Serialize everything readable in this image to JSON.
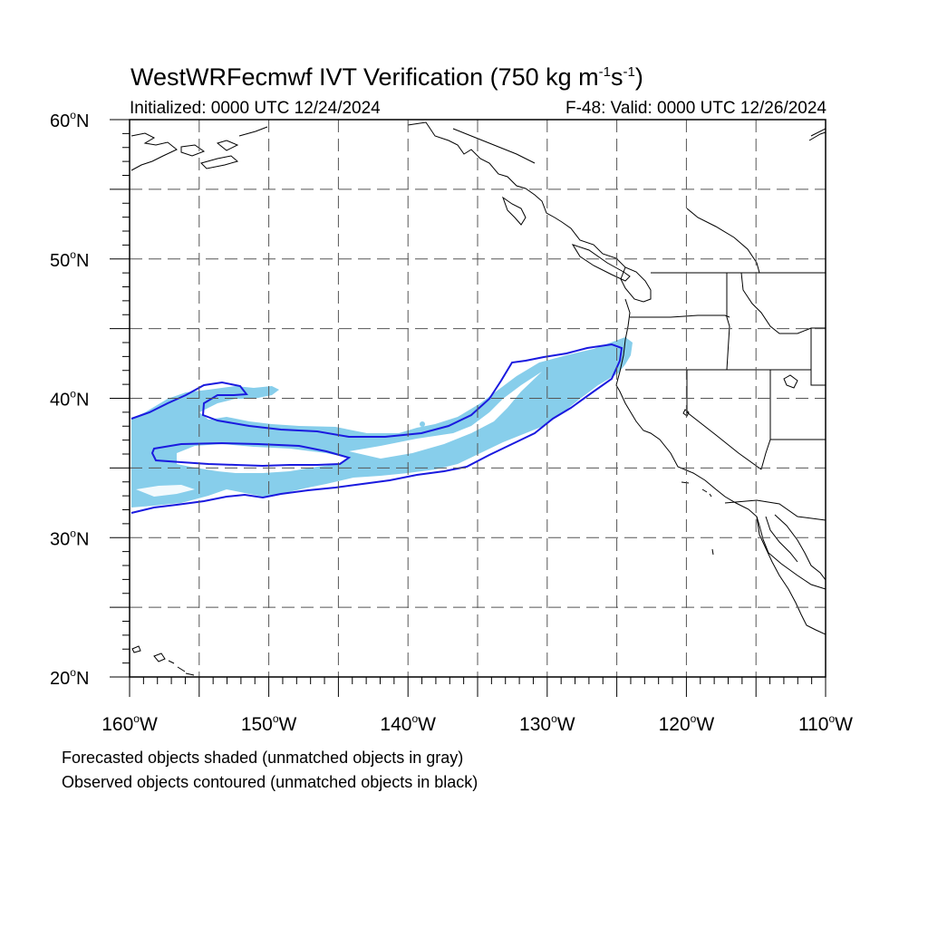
{
  "title": {
    "main": "WestWRFecmwf IVT Verification (750 kg m",
    "sup1": "-1",
    "mid": "s",
    "sup2": "-1",
    "end": ")"
  },
  "initialized": "Initialized: 0000 UTC 12/24/2024",
  "valid": "F-48: Valid: 0000 UTC 12/26/2024",
  "lat_labels": [
    {
      "value": 60,
      "text": "60",
      "hemi": "N"
    },
    {
      "value": 50,
      "text": "50",
      "hemi": "N"
    },
    {
      "value": 40,
      "text": "40",
      "hemi": "N"
    },
    {
      "value": 30,
      "text": "30",
      "hemi": "N"
    },
    {
      "value": 20,
      "text": "20",
      "hemi": "N"
    }
  ],
  "lon_labels": [
    {
      "value": -160,
      "text": "160",
      "hemi": "W"
    },
    {
      "value": -150,
      "text": "150",
      "hemi": "W"
    },
    {
      "value": -140,
      "text": "140",
      "hemi": "W"
    },
    {
      "value": -130,
      "text": "130",
      "hemi": "W"
    },
    {
      "value": -120,
      "text": "120",
      "hemi": "W"
    },
    {
      "value": -110,
      "text": "110",
      "hemi": "W"
    }
  ],
  "domain": {
    "lon_min": -160,
    "lon_max": -110,
    "lat_min": 20,
    "lat_max": 60
  },
  "colors": {
    "forecast_fill": "#87ceeb",
    "observed_contour": "#1a1adf",
    "coast": "#000000",
    "grid": "#000000"
  },
  "legend": {
    "forecast": "Forecasted objects shaded (unmatched objects in gray)",
    "observed": "Observed objects contoured (unmatched objects in black)"
  }
}
